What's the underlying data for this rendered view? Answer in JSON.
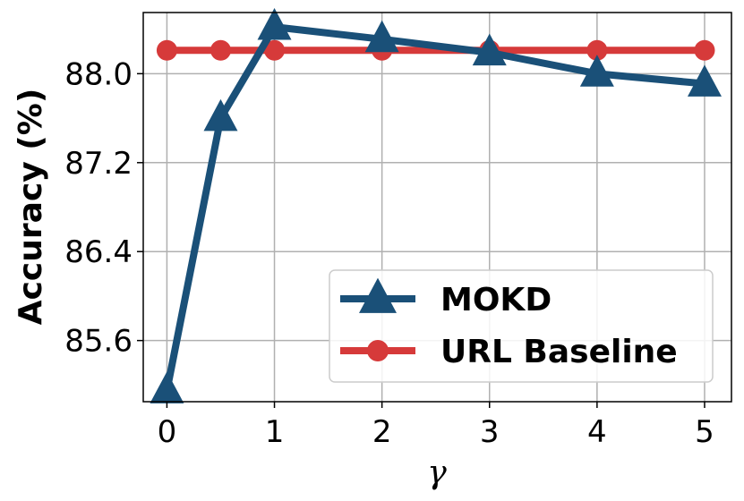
{
  "chart_data": {
    "type": "line",
    "xlabel": "γ",
    "ylabel": "Accuracy (%)",
    "xlim": [
      -0.22,
      5.25
    ],
    "ylim": [
      85.05,
      88.55
    ],
    "xticks": [
      0,
      1,
      2,
      3,
      4,
      5
    ],
    "xtick_labels": [
      "0",
      "1",
      "2",
      "3",
      "4",
      "5"
    ],
    "yticks": [
      85.6,
      86.4,
      87.2,
      88.0
    ],
    "ytick_labels": [
      "85.6",
      "86.4",
      "87.2",
      "88.0"
    ],
    "grid": true,
    "legend_position": "lower-right",
    "series": [
      {
        "name": "MOKD",
        "marker": "triangle",
        "color": "#1a5078",
        "x": [
          0,
          0.5,
          1,
          2,
          3,
          4,
          5
        ],
        "y": [
          85.15,
          87.6,
          88.42,
          88.31,
          88.19,
          88.0,
          87.91
        ]
      },
      {
        "name": "URL Baseline",
        "marker": "circle",
        "color": "#d63a3a",
        "x": [
          0,
          0.5,
          1,
          2,
          3,
          4,
          5
        ],
        "y": [
          88.21,
          88.21,
          88.21,
          88.21,
          88.21,
          88.21,
          88.21
        ]
      }
    ]
  }
}
